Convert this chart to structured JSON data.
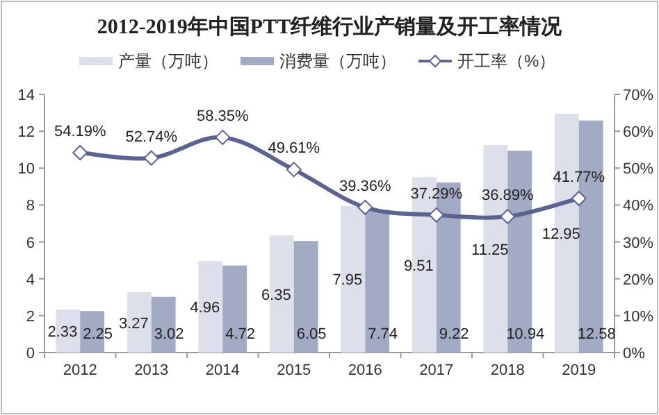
{
  "chart_data": {
    "type": "bar",
    "title": "2012-2019年中国PTT纤维行业产销量及开工率情况",
    "categories": [
      "2012",
      "2013",
      "2014",
      "2015",
      "2016",
      "2017",
      "2018",
      "2019"
    ],
    "series": [
      {
        "name": "产量（万吨）",
        "color": "#dde0ea",
        "values": [
          2.33,
          3.27,
          4.96,
          6.35,
          7.95,
          9.51,
          11.25,
          12.95
        ],
        "value_labels": [
          "2.33",
          "3.27",
          "4.96",
          "6.35",
          "7.95",
          "9.51",
          "11.25",
          "12.95"
        ]
      },
      {
        "name": "消费量（万吨）",
        "color": "#a3aac4",
        "values": [
          2.25,
          3.02,
          4.72,
          6.05,
          7.74,
          9.22,
          10.94,
          12.58
        ],
        "value_labels": [
          "2.25",
          "3.02",
          "4.72",
          "6.05",
          "7.74",
          "9.22",
          "10.94",
          "12.58"
        ]
      },
      {
        "name": "开工率（%）",
        "type": "line",
        "axis": "y2",
        "color": "#5b6390",
        "marker": "diamond",
        "values": [
          54.19,
          52.74,
          58.35,
          49.61,
          39.36,
          37.29,
          36.89,
          41.77
        ],
        "value_labels": [
          "54.19%",
          "52.74%",
          "58.35%",
          "49.61%",
          "39.36%",
          "37.29%",
          "36.89%",
          "41.77%"
        ]
      }
    ],
    "ylim": [
      0,
      14
    ],
    "yticks": [
      0,
      2,
      4,
      6,
      8,
      10,
      12,
      14
    ],
    "y2lim": [
      0,
      70
    ],
    "y2ticks": [
      {
        "value": 0,
        "label": "0%"
      },
      {
        "value": 10,
        "label": "10%"
      },
      {
        "value": 20,
        "label": "20%"
      },
      {
        "value": 30,
        "label": "30%"
      },
      {
        "value": 40,
        "label": "40%"
      },
      {
        "value": 50,
        "label": "50%"
      },
      {
        "value": 60,
        "label": "60%"
      },
      {
        "value": 70,
        "label": "70%"
      }
    ],
    "legend": "top",
    "grid": false
  }
}
